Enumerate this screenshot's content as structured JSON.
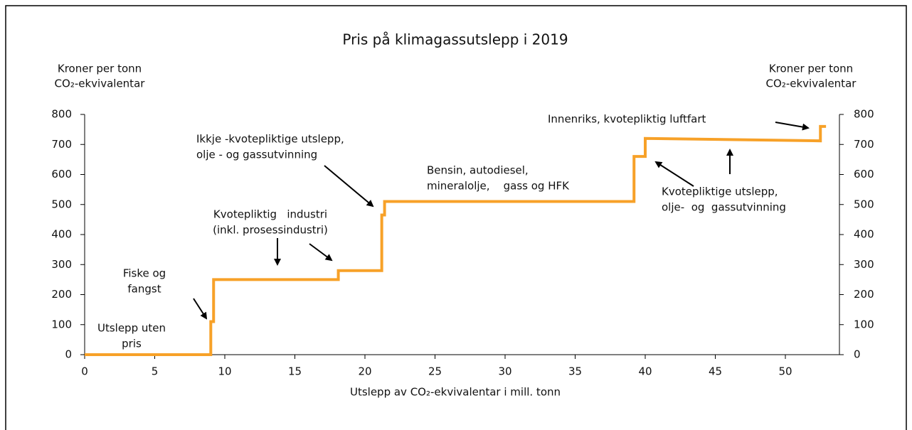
{
  "chart_data": {
    "type": "line",
    "title": "Pris på klimagassutslepp i 2019",
    "ylabel": [
      "Kroner per tonn",
      "CO₂-ekvivalentar"
    ],
    "y2label": [
      "Kroner per tonn",
      "CO₂-ekvivalentar"
    ],
    "xlabel": "Utslepp av CO₂-ekvivalentar i mill. tonn",
    "x": [
      0,
      9.0,
      9.0,
      9.2,
      9.2,
      18.1,
      18.1,
      21.2,
      21.2,
      21.4,
      21.4,
      39.2,
      39.2,
      40.0,
      40.0,
      52.5,
      52.5,
      52.9
    ],
    "series": [
      {
        "color": "#f7a128",
        "values": [
          0,
          0,
          110,
          110,
          250,
          250,
          280,
          280,
          465,
          465,
          510,
          510,
          660,
          660,
          720,
          712,
          760,
          760
        ]
      }
    ],
    "xlim": [
      0,
      54
    ],
    "xticks": [
      0,
      5,
      10,
      15,
      20,
      25,
      30,
      35,
      40,
      45,
      50
    ],
    "ylim": [
      0,
      800
    ],
    "yticks": [
      0,
      100,
      200,
      300,
      400,
      500,
      600,
      700,
      800
    ],
    "y2lim": [
      0,
      800
    ],
    "y2ticks": [
      0,
      100,
      200,
      300,
      400,
      500,
      600,
      700,
      800
    ],
    "annotations": [
      {
        "text": [
          "Utslepp uten",
          "pris"
        ]
      },
      {
        "text": [
          "Fiske og",
          "fangst"
        ]
      },
      {
        "text": [
          "Kvotepliktig   industri",
          "(inkl. prosessindustri)"
        ]
      },
      {
        "text": [
          "Ikkje -kvotepliktige utslepp,",
          "olje - og gassutvinning"
        ]
      },
      {
        "text": [
          "Bensin, autodiesel,",
          "mineralolje,    gass og HFK"
        ]
      },
      {
        "text": [
          "Innenriks, kvotepliktig luftfart"
        ]
      },
      {
        "text": [
          "Kvotepliktige utslepp,",
          "olje-  og  gassutvinning"
        ]
      }
    ]
  }
}
